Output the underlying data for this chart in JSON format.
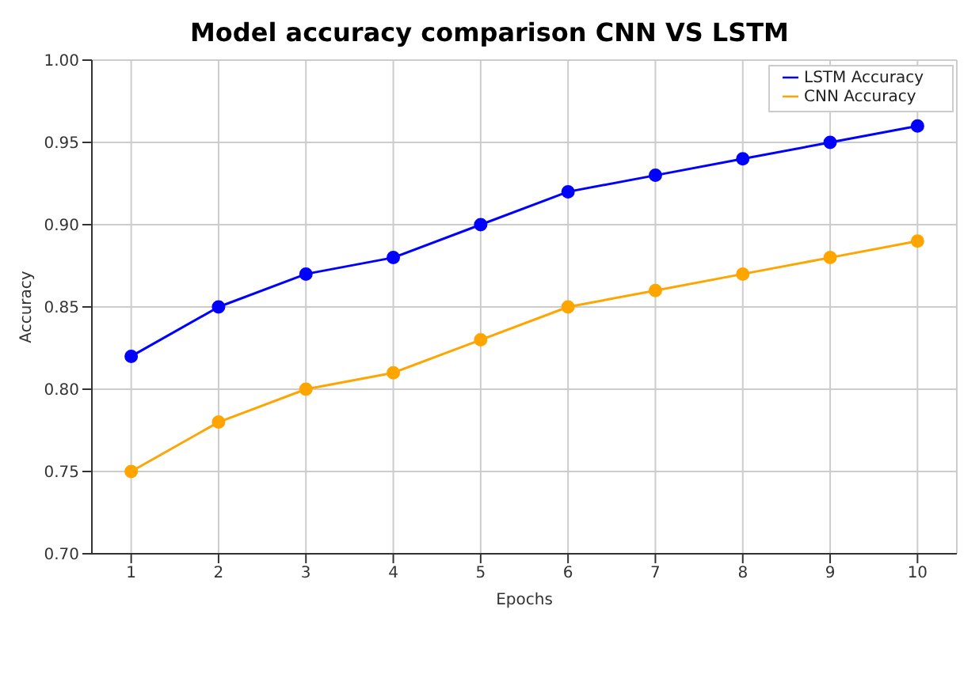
{
  "chart_data": {
    "type": "line",
    "title": "Model accuracy comparison CNN VS LSTM",
    "xlabel": "Epochs",
    "ylabel": "Accuracy",
    "x": [
      1,
      2,
      3,
      4,
      5,
      6,
      7,
      8,
      9,
      10
    ],
    "series": [
      {
        "name": "LSTM Accuracy",
        "color": "#0000ff",
        "values": [
          0.82,
          0.85,
          0.87,
          0.88,
          0.9,
          0.92,
          0.93,
          0.94,
          0.95,
          0.96
        ]
      },
      {
        "name": "CNN Accuracy",
        "color": "#ffa500",
        "values": [
          0.75,
          0.78,
          0.8,
          0.81,
          0.83,
          0.85,
          0.86,
          0.87,
          0.88,
          0.89
        ]
      }
    ],
    "xlim": [
      0.55,
      10.45
    ],
    "xticks": [
      1,
      2,
      3,
      4,
      5,
      6,
      7,
      8,
      9,
      10
    ],
    "ylim": [
      0.7,
      1.0
    ],
    "yticks": [
      {
        "value": 0.7,
        "label": "0.70"
      },
      {
        "value": 0.75,
        "label": "0.75"
      },
      {
        "value": 0.8,
        "label": "0.80"
      },
      {
        "value": 0.85,
        "label": "0.85"
      },
      {
        "value": 0.9,
        "label": "0.90"
      },
      {
        "value": 0.95,
        "label": "0.95"
      },
      {
        "value": 1.0,
        "label": "1.00"
      }
    ],
    "grid": true,
    "legend": "top right",
    "marker": "circle",
    "line_style": "solid"
  }
}
